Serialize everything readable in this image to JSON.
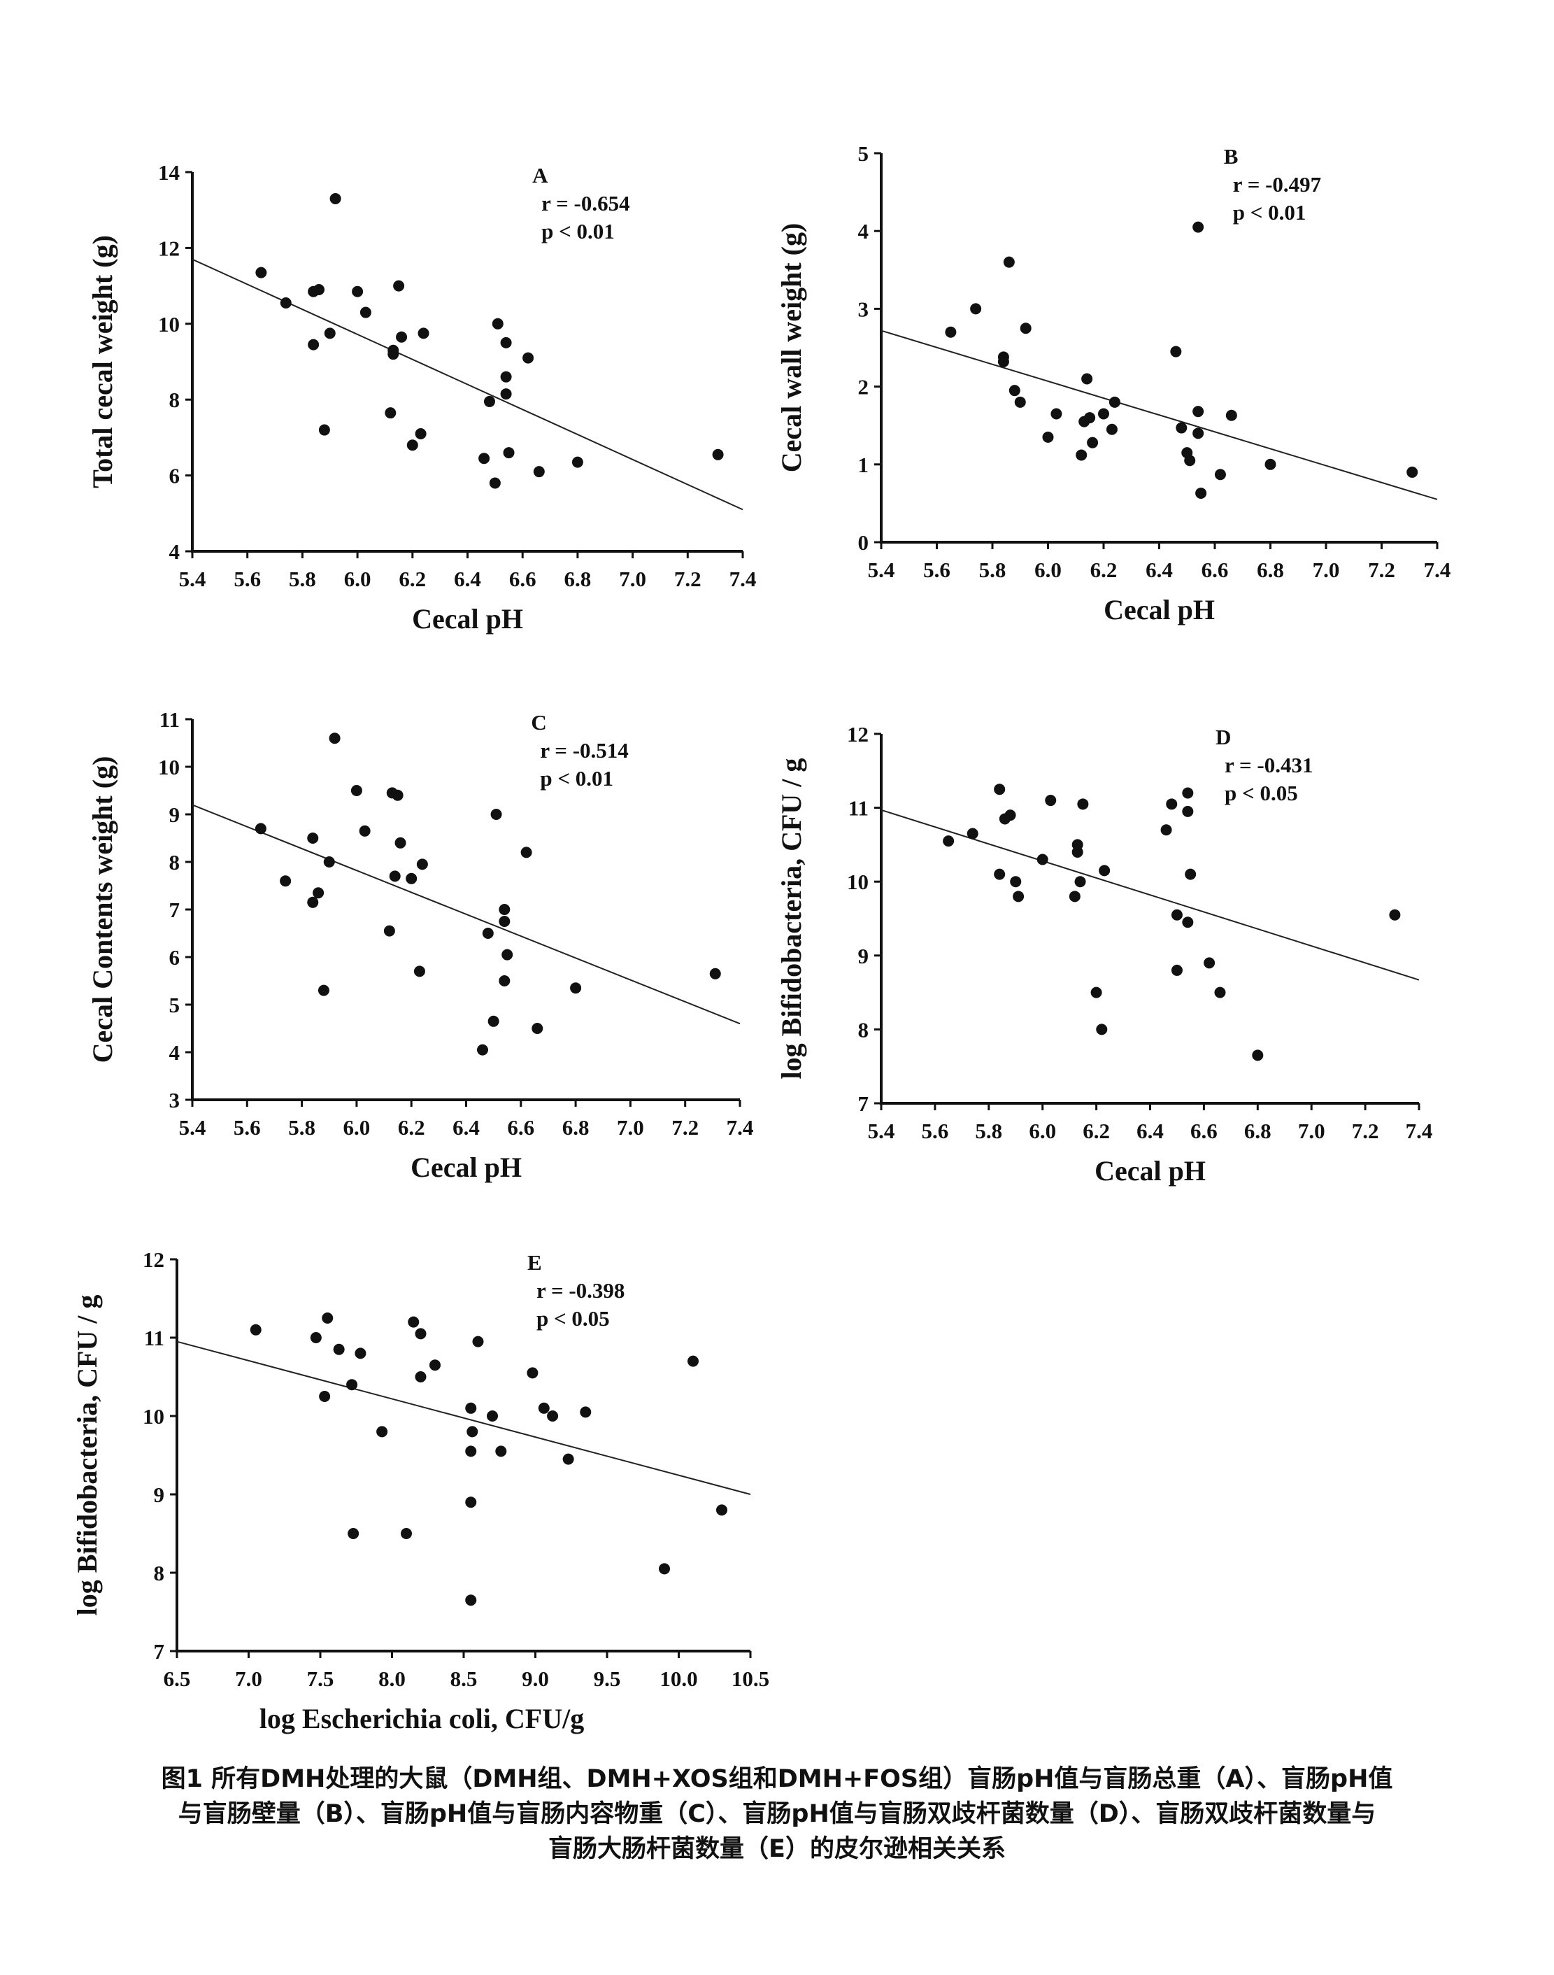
{
  "caption": {
    "line1": "图1 所有DMH处理的大鼠（DMH组、DMH+XOS组和DMH+FOS组）盲肠pH值与盲肠总重（A）、盲肠pH值",
    "line2": "与盲肠壁量（B）、盲肠pH值与盲肠内容物重（C）、盲肠pH值与盲肠双歧杆菌数量（D）、盲肠双歧杆菌数量与",
    "line3": "盲肠大肠杆菌数量（E）的皮尔逊相关关系"
  },
  "chart_data": [
    {
      "type": "scatter",
      "panel": "A",
      "xlabel": "Cecal pH",
      "ylabel": "Total cecal  weight (g)",
      "xlim": [
        5.4,
        7.4
      ],
      "ylim": [
        4,
        14
      ],
      "xticks": [
        "5.4",
        "5.6",
        "5.8",
        "6.0",
        "6.2",
        "6.4",
        "6.6",
        "6.8",
        "7.0",
        "7.2",
        "7.4"
      ],
      "yticks": [
        "4",
        "6",
        "8",
        "10",
        "12",
        "14"
      ],
      "r_text": "r = -0.654",
      "p_text": "p < 0.01",
      "trendline": [
        [
          5.4,
          11.7
        ],
        [
          7.4,
          5.1
        ]
      ],
      "points": [
        [
          5.65,
          11.35
        ],
        [
          5.74,
          10.55
        ],
        [
          5.84,
          10.85
        ],
        [
          5.86,
          10.9
        ],
        [
          5.84,
          9.45
        ],
        [
          5.88,
          7.2
        ],
        [
          5.9,
          9.75
        ],
        [
          5.92,
          13.3
        ],
        [
          6.0,
          10.85
        ],
        [
          6.03,
          10.3
        ],
        [
          6.12,
          7.65
        ],
        [
          6.13,
          9.3
        ],
        [
          6.13,
          9.2
        ],
        [
          6.15,
          11.0
        ],
        [
          6.16,
          9.65
        ],
        [
          6.2,
          6.8
        ],
        [
          6.23,
          7.1
        ],
        [
          6.24,
          9.75
        ],
        [
          6.46,
          6.45
        ],
        [
          6.48,
          7.95
        ],
        [
          6.5,
          5.8
        ],
        [
          6.51,
          10.0
        ],
        [
          6.54,
          9.5
        ],
        [
          6.54,
          8.6
        ],
        [
          6.54,
          8.15
        ],
        [
          6.55,
          6.6
        ],
        [
          6.62,
          9.1
        ],
        [
          6.66,
          6.1
        ],
        [
          6.8,
          6.35
        ],
        [
          7.31,
          6.55
        ]
      ]
    },
    {
      "type": "scatter",
      "panel": "B",
      "xlabel": "Cecal pH",
      "ylabel": "Cecal wall   weight (g)",
      "xlim": [
        5.4,
        7.4
      ],
      "ylim": [
        0,
        5
      ],
      "xticks": [
        "5.4",
        "5.6",
        "5.8",
        "6.0",
        "6.2",
        "6.4",
        "6.6",
        "6.8",
        "7.0",
        "7.2",
        "7.4"
      ],
      "yticks": [
        "0",
        "1",
        "2",
        "3",
        "4",
        "5"
      ],
      "r_text": "r = -0.497",
      "p_text": "p < 0.01",
      "trendline": [
        [
          5.4,
          2.72
        ],
        [
          7.4,
          0.55
        ]
      ],
      "points": [
        [
          5.65,
          2.7
        ],
        [
          5.74,
          3.0
        ],
        [
          5.84,
          2.38
        ],
        [
          5.84,
          2.32
        ],
        [
          5.86,
          3.6
        ],
        [
          5.88,
          1.95
        ],
        [
          5.9,
          1.8
        ],
        [
          5.92,
          2.75
        ],
        [
          6.0,
          1.35
        ],
        [
          6.03,
          1.65
        ],
        [
          6.12,
          1.12
        ],
        [
          6.13,
          1.55
        ],
        [
          6.14,
          2.1
        ],
        [
          6.15,
          1.6
        ],
        [
          6.16,
          1.28
        ],
        [
          6.2,
          1.65
        ],
        [
          6.23,
          1.45
        ],
        [
          6.24,
          1.8
        ],
        [
          6.46,
          2.45
        ],
        [
          6.48,
          1.47
        ],
        [
          6.5,
          1.15
        ],
        [
          6.51,
          1.05
        ],
        [
          6.54,
          1.68
        ],
        [
          6.54,
          1.4
        ],
        [
          6.54,
          4.05
        ],
        [
          6.55,
          0.63
        ],
        [
          6.62,
          0.87
        ],
        [
          6.66,
          1.63
        ],
        [
          6.8,
          1.0
        ],
        [
          7.31,
          0.9
        ]
      ]
    },
    {
      "type": "scatter",
      "panel": "C",
      "xlabel": "Cecal pH",
      "ylabel": "Cecal Contents weight (g)",
      "xlim": [
        5.4,
        7.4
      ],
      "ylim": [
        3,
        11
      ],
      "xticks": [
        "5.4",
        "5.6",
        "5.8",
        "6.0",
        "6.2",
        "6.4",
        "6.6",
        "6.8",
        "7.0",
        "7.2",
        "7.4"
      ],
      "yticks": [
        "3",
        "4",
        "5",
        "6",
        "7",
        "8",
        "9",
        "10",
        "11"
      ],
      "r_text": "r = -0.514",
      "p_text": "p < 0.01",
      "trendline": [
        [
          5.4,
          9.2
        ],
        [
          7.4,
          4.6
        ]
      ],
      "points": [
        [
          5.65,
          8.7
        ],
        [
          5.74,
          7.6
        ],
        [
          5.84,
          8.5
        ],
        [
          5.84,
          7.15
        ],
        [
          5.86,
          7.35
        ],
        [
          5.88,
          5.3
        ],
        [
          5.9,
          8.0
        ],
        [
          5.92,
          10.6
        ],
        [
          6.0,
          9.5
        ],
        [
          6.03,
          8.65
        ],
        [
          6.12,
          6.55
        ],
        [
          6.13,
          9.45
        ],
        [
          6.14,
          7.7
        ],
        [
          6.15,
          9.4
        ],
        [
          6.16,
          8.4
        ],
        [
          6.2,
          7.65
        ],
        [
          6.23,
          5.7
        ],
        [
          6.24,
          7.95
        ],
        [
          6.46,
          4.05
        ],
        [
          6.48,
          6.5
        ],
        [
          6.5,
          4.65
        ],
        [
          6.51,
          9.0
        ],
        [
          6.54,
          7.0
        ],
        [
          6.54,
          6.75
        ],
        [
          6.55,
          6.05
        ],
        [
          6.54,
          5.5
        ],
        [
          6.62,
          8.2
        ],
        [
          6.66,
          4.5
        ],
        [
          6.8,
          5.35
        ],
        [
          7.31,
          5.65
        ]
      ]
    },
    {
      "type": "scatter",
      "panel": "D",
      "xlabel": "Cecal pH",
      "ylabel": "log Bifidobacteria, CFU / g",
      "xlim": [
        5.4,
        7.4
      ],
      "ylim": [
        7,
        12
      ],
      "xticks": [
        "5.4",
        "5.6",
        "5.8",
        "6.0",
        "6.2",
        "6.4",
        "6.6",
        "6.8",
        "7.0",
        "7.2",
        "7.4"
      ],
      "yticks": [
        "7",
        "8",
        "9",
        "10",
        "11",
        "12"
      ],
      "r_text": "r = -0.431",
      "p_text": "p < 0.05",
      "trendline": [
        [
          5.4,
          10.97
        ],
        [
          7.4,
          8.67
        ]
      ],
      "points": [
        [
          5.65,
          10.55
        ],
        [
          5.74,
          10.65
        ],
        [
          5.84,
          11.25
        ],
        [
          5.84,
          10.1
        ],
        [
          5.86,
          10.85
        ],
        [
          5.88,
          10.9
        ],
        [
          5.9,
          10.0
        ],
        [
          5.91,
          9.8
        ],
        [
          6.0,
          10.3
        ],
        [
          6.03,
          11.1
        ],
        [
          6.12,
          9.8
        ],
        [
          6.13,
          10.4
        ],
        [
          6.13,
          10.5
        ],
        [
          6.14,
          10.0
        ],
        [
          6.15,
          11.05
        ],
        [
          6.2,
          8.5
        ],
        [
          6.22,
          8.0
        ],
        [
          6.23,
          10.15
        ],
        [
          6.46,
          10.7
        ],
        [
          6.48,
          11.05
        ],
        [
          6.5,
          9.55
        ],
        [
          6.5,
          8.8
        ],
        [
          6.54,
          9.45
        ],
        [
          6.54,
          10.95
        ],
        [
          6.54,
          11.2
        ],
        [
          6.55,
          10.1
        ],
        [
          6.62,
          8.9
        ],
        [
          6.66,
          8.5
        ],
        [
          6.8,
          7.65
        ],
        [
          7.31,
          9.55
        ]
      ]
    },
    {
      "type": "scatter",
      "panel": "E",
      "xlabel": "log Escherichia coli, CFU/g",
      "ylabel": "log Bifidobacteria, CFU / g",
      "xlim": [
        6.5,
        10.5
      ],
      "ylim": [
        7,
        12
      ],
      "xticks": [
        "6.5",
        "7.0",
        "7.5",
        "8.0",
        "8.5",
        "9.0",
        "9.5",
        "10.0",
        "10.5"
      ],
      "yticks": [
        "7",
        "8",
        "9",
        "10",
        "11",
        "12"
      ],
      "r_text": "r = -0.398",
      "p_text": "p < 0.05",
      "trendline": [
        [
          6.5,
          10.95
        ],
        [
          10.5,
          9.0
        ]
      ],
      "points": [
        [
          7.05,
          11.1
        ],
        [
          7.47,
          11.0
        ],
        [
          7.55,
          11.25
        ],
        [
          7.53,
          10.25
        ],
        [
          7.63,
          10.85
        ],
        [
          7.72,
          10.4
        ],
        [
          7.78,
          10.8
        ],
        [
          7.93,
          9.8
        ],
        [
          7.73,
          8.5
        ],
        [
          8.1,
          8.5
        ],
        [
          8.15,
          11.2
        ],
        [
          8.2,
          11.05
        ],
        [
          8.2,
          10.5
        ],
        [
          8.3,
          10.65
        ],
        [
          8.55,
          10.1
        ],
        [
          8.56,
          9.8
        ],
        [
          8.55,
          9.55
        ],
        [
          8.55,
          8.9
        ],
        [
          8.55,
          7.65
        ],
        [
          8.6,
          10.95
        ],
        [
          8.7,
          10.0
        ],
        [
          8.76,
          9.55
        ],
        [
          8.98,
          10.55
        ],
        [
          9.06,
          10.1
        ],
        [
          9.12,
          10.0
        ],
        [
          9.23,
          9.45
        ],
        [
          9.35,
          10.05
        ],
        [
          9.9,
          8.05
        ],
        [
          10.1,
          10.7
        ],
        [
          10.3,
          8.8
        ]
      ]
    }
  ]
}
